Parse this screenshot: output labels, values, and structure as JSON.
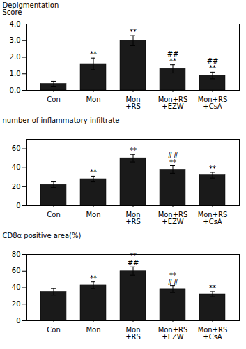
{
  "chart_data": [
    {
      "type": "bar",
      "categories": [
        "Con",
        "Mon",
        "Mon\n+RS",
        "Mon+RS\n+EZW",
        "Mon+RS\n+CsA"
      ],
      "values": [
        0.4,
        1.6,
        3.0,
        1.3,
        0.9
      ],
      "errors": [
        0.15,
        0.35,
        0.3,
        0.25,
        0.2
      ],
      "annotations": [
        null,
        "**",
        "**",
        "##\n**",
        "##\n**"
      ],
      "color": "#1a1a1a",
      "ylabel": "Depigmentation\nScore",
      "ylim": [
        0,
        4
      ],
      "yticks": [
        0,
        1,
        2,
        3,
        4
      ],
      "grid": false
    },
    {
      "type": "bar",
      "categories": [
        "Con",
        "Mon",
        "Mon\n+RS",
        "Mon+RS\n+EZW",
        "Mon+RS\n+CsA"
      ],
      "values": [
        22,
        28,
        50,
        38,
        32
      ],
      "errors": [
        3,
        3,
        4,
        4,
        3
      ],
      "annotations": [
        null,
        "**",
        "**",
        "##\n**",
        "**"
      ],
      "color": "#1a1a1a",
      "ylabel": "number of inflammatory infiltrate",
      "ylim": [
        0,
        70
      ],
      "yticks": [
        0,
        20,
        40,
        60
      ],
      "grid": false
    },
    {
      "type": "bar",
      "categories": [
        "Con",
        "Mon",
        "Mon\n+RS",
        "Mon+RS\n+EZW",
        "Mon+RS\n+CsA"
      ],
      "values": [
        35,
        43,
        60,
        38,
        32
      ],
      "errors": [
        4,
        4,
        5,
        4,
        3
      ],
      "annotations": [
        null,
        "**",
        "**\n##",
        "**\n##",
        "**"
      ],
      "color": "#1a1a1a",
      "ylabel": "CD8α positive area(%)",
      "ylim": [
        0,
        80
      ],
      "yticks": [
        0,
        20,
        40,
        60,
        80
      ],
      "grid": false
    }
  ]
}
